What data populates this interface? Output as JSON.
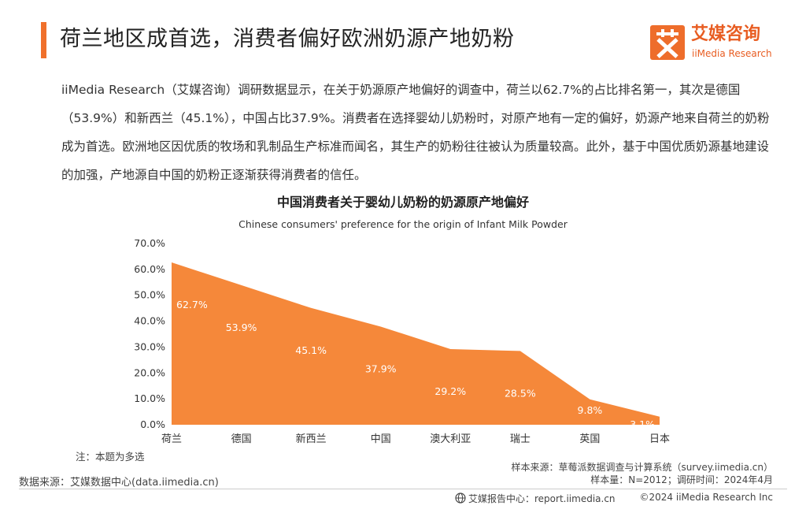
{
  "header": {
    "title": "荷兰地区成首选，消费者偏好欧洲奶源产地奶粉",
    "accent_color": "#f0702b"
  },
  "logo": {
    "mark": "艾",
    "name_cn": "艾媒咨询",
    "name_en": "iiMedia Research",
    "color": "#e85d22"
  },
  "intro": {
    "text": "iiMedia Research（艾媒咨询）调研数据显示，在关于奶源原产地偏好的调查中，荷兰以62.7%的占比排名第一，其次是德国（53.9%）和新西兰（45.1%），中国占比37.9%。消费者在选择婴幼儿奶粉时，对原产地有一定的偏好，奶源产地来自荷兰的奶粉成为首选。欧洲地区因优质的牧场和乳制品生产标准而闻名，其生产的奶粉往往被认为质量较高。此外，基于中国优质奶源基地建设的加强，产地源自中国的奶粉正逐渐获得消费者的信任。"
  },
  "chart_data": {
    "type": "area",
    "title": "中国消费者关于婴幼儿奶粉的奶源原产地偏好",
    "subtitle": "Chinese consumers' preference for the origin of Infant Milk Powder",
    "categories": [
      "荷兰",
      "德国",
      "新西兰",
      "中国",
      "澳大利亚",
      "瑞士",
      "英国",
      "日本"
    ],
    "values": [
      62.7,
      53.9,
      45.1,
      37.9,
      29.2,
      28.5,
      9.8,
      3.1
    ],
    "data_labels": [
      "62.7%",
      "53.9%",
      "45.1%",
      "37.9%",
      "29.2%",
      "28.5%",
      "9.8%",
      "3.1%"
    ],
    "yticks": [
      "0.0%",
      "10.0%",
      "20.0%",
      "30.0%",
      "40.0%",
      "50.0%",
      "60.0%",
      "70.0%"
    ],
    "ylim": [
      0,
      70
    ],
    "grid": false,
    "legend": "none",
    "fill_color": "#f5883a"
  },
  "notes": {
    "note": "注：本题为多选",
    "sample_source": "样本来源：草莓派数据调查与计算系统（survey.iimedia.cn）",
    "sample_info": "样本量：N=2012；调研时间：2024年4月",
    "data_source": "数据来源：艾媒数据中心(data.iimedia.cn)"
  },
  "footer": {
    "report_center": "艾媒报告中心：report.iimedia.cn",
    "copyright": "©2024 iiMedia Research Inc"
  }
}
